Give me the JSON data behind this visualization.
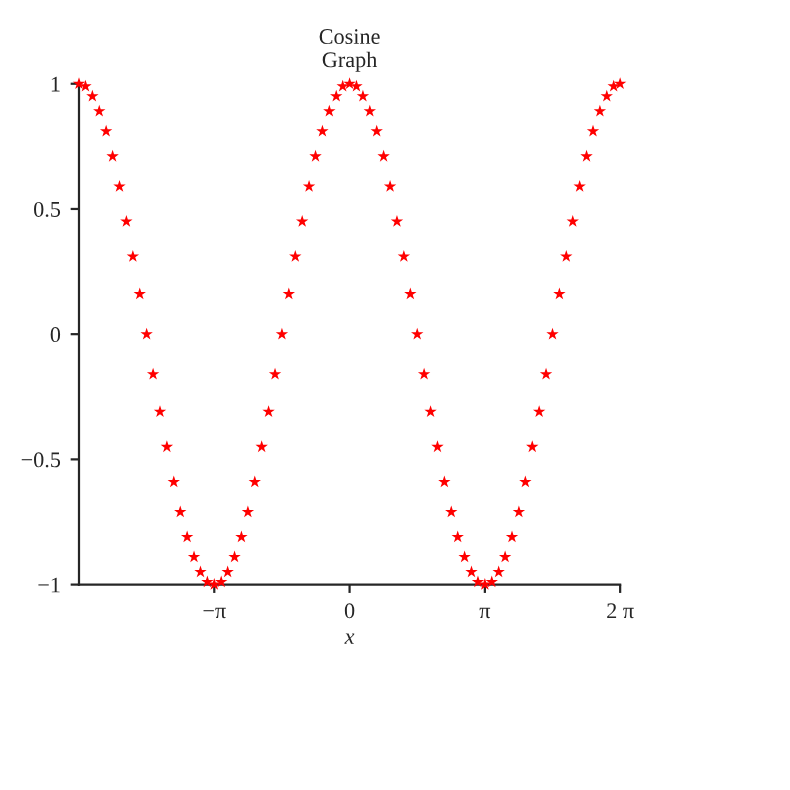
{
  "chart_data": {
    "type": "scatter",
    "title": "Cosine\nGraph",
    "xlabel": "x",
    "x": [
      -6.28,
      -6.13,
      -5.97,
      -5.81,
      -5.65,
      -5.5,
      -5.34,
      -5.18,
      -5.03,
      -4.87,
      -4.71,
      -4.56,
      -4.4,
      -4.24,
      -4.08,
      -3.93,
      -3.77,
      -3.61,
      -3.46,
      -3.3,
      -3.14,
      -2.98,
      -2.83,
      -2.67,
      -2.51,
      -2.36,
      -2.2,
      -2.04,
      -1.88,
      -1.73,
      -1.57,
      -1.41,
      -1.26,
      -1.1,
      -0.94,
      -0.79,
      -0.63,
      -0.47,
      -0.31,
      -0.16,
      0,
      0.16,
      0.31,
      0.47,
      0.63,
      0.79,
      0.94,
      1.1,
      1.26,
      1.41,
      1.57,
      1.73,
      1.88,
      2.04,
      2.2,
      2.36,
      2.51,
      2.67,
      2.83,
      2.98,
      3.14,
      3.3,
      3.46,
      3.61,
      3.77,
      3.93,
      4.08,
      4.24,
      4.4,
      4.56,
      4.71,
      4.87,
      5.03,
      5.18,
      5.34,
      5.5,
      5.65,
      5.81,
      5.97,
      6.13,
      6.28
    ],
    "series": [
      {
        "color": "#ff0000",
        "values": [
          1,
          0.99,
          0.95,
          0.89,
          0.81,
          0.71,
          0.59,
          0.45,
          0.31,
          0.16,
          0,
          -0.16,
          -0.31,
          -0.45,
          -0.59,
          -0.71,
          -0.81,
          -0.89,
          -0.95,
          -0.99,
          -1,
          -0.99,
          -0.95,
          -0.89,
          -0.81,
          -0.71,
          -0.59,
          -0.45,
          -0.31,
          -0.16,
          0,
          0.16,
          0.31,
          0.45,
          0.59,
          0.71,
          0.81,
          0.89,
          0.95,
          0.99,
          1,
          0.99,
          0.95,
          0.89,
          0.81,
          0.71,
          0.59,
          0.45,
          0.31,
          0.16,
          0,
          -0.16,
          -0.31,
          -0.45,
          -0.59,
          -0.71,
          -0.81,
          -0.89,
          -0.95,
          -0.99,
          -1,
          -0.99,
          -0.95,
          -0.89,
          -0.81,
          -0.71,
          -0.59,
          -0.45,
          -0.31,
          -0.16,
          0,
          0.16,
          0.31,
          0.45,
          0.59,
          0.71,
          0.81,
          0.89,
          0.95,
          0.99,
          1
        ]
      }
    ],
    "xlim": [
      -6.28,
      6.28
    ],
    "xticks": [
      {
        "value": -3.14,
        "label": "−π"
      },
      0,
      {
        "value": 3.14,
        "label": "π"
      },
      {
        "value": 6.28,
        "label": "2 π"
      }
    ],
    "ylim": [
      -1,
      1
    ],
    "yticks": [
      {
        "value": -1,
        "label": "−1"
      },
      {
        "value": -0.5,
        "label": "−0.5"
      },
      0,
      0.5,
      1
    ],
    "marker": "star",
    "grid": false,
    "legend": false
  }
}
